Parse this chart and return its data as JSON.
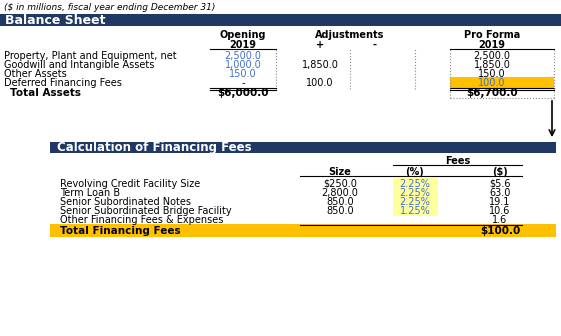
{
  "subtitle": "($ in millions, fiscal year ending December 31)",
  "header_bg": "#1F3864",
  "header_text_color": "#FFFFFF",
  "yellow_bg": "#FFC000",
  "light_yellow_bg": "#FFFFA0",
  "blue_text": "#4472C4",
  "section1_title": "Balance Sheet",
  "section2_title": "Calculation of Financing Fees",
  "bs_rows": [
    {
      "label": "Property, Plant and Equipment, net",
      "opening": "2,500.0",
      "adj_plus": "",
      "proforma": "2,500.0",
      "opening_blue": true,
      "proforma_yellow": false
    },
    {
      "label": "Goodwill and Intangible Assets",
      "opening": "1,000.0",
      "adj_plus": "1,850.0",
      "proforma": "1,850.0",
      "opening_blue": true,
      "proforma_yellow": false
    },
    {
      "label": "Other Assets",
      "opening": "150.0",
      "adj_plus": "",
      "proforma": "150.0",
      "opening_blue": true,
      "proforma_yellow": false
    },
    {
      "label": "Deferred Financing Fees",
      "opening": "-",
      "adj_plus": "100.0",
      "proforma": "100.0",
      "opening_blue": false,
      "proforma_yellow": true
    }
  ],
  "bs_total_label": "Total Assets",
  "bs_total_opening": "$6,000.0",
  "bs_total_proforma": "$6,700.0",
  "fees_rows": [
    {
      "label": "Revolving Credit Facility Size",
      "size": "$250.0",
      "pct": "2.25%",
      "dollar": "$5.6",
      "pct_yellow": true
    },
    {
      "label": "Term Loan B",
      "size": "2,800.0",
      "pct": "2.25%",
      "dollar": "63.0",
      "pct_yellow": true
    },
    {
      "label": "Senior Subordinated Notes",
      "size": "850.0",
      "pct": "2.25%",
      "dollar": "19.1",
      "pct_yellow": true
    },
    {
      "label": "Senior Subordinated Bridge Facility",
      "size": "850.0",
      "pct": "1.25%",
      "dollar": "10.6",
      "pct_yellow": true
    },
    {
      "label": "Other Financing Fees & Expenses",
      "size": "",
      "pct": "",
      "dollar": "1.6",
      "pct_yellow": false
    }
  ],
  "fees_total_label": "Total Financing Fees",
  "fees_total_dollar": "$100.0"
}
